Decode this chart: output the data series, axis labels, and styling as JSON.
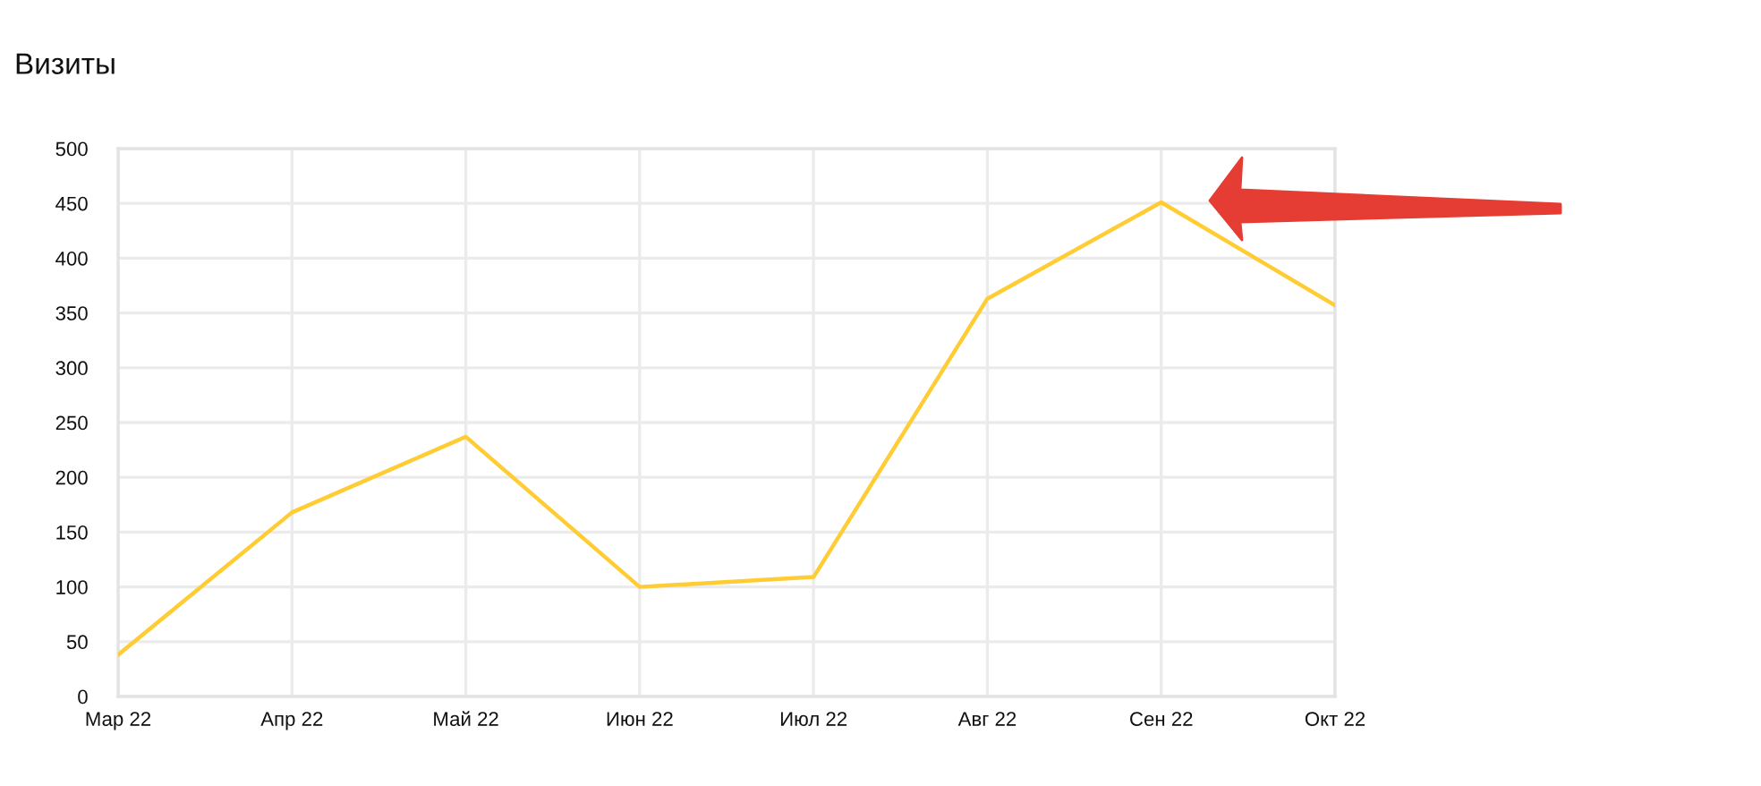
{
  "chart_data": {
    "type": "line",
    "title": "Визиты",
    "categories": [
      "Мар 22",
      "Апр 22",
      "Май 22",
      "Июн 22",
      "Июл 22",
      "Авг 22",
      "Сен 22",
      "Окт 22"
    ],
    "series": [
      {
        "color": "#ffcc33",
        "values": [
          38,
          168,
          237,
          100,
          109,
          363,
          451,
          357
        ]
      }
    ],
    "ylim": [
      0,
      500
    ],
    "yticks": [
      0,
      50,
      100,
      150,
      200,
      250,
      300,
      350,
      400,
      450,
      500
    ],
    "grid": true
  }
}
